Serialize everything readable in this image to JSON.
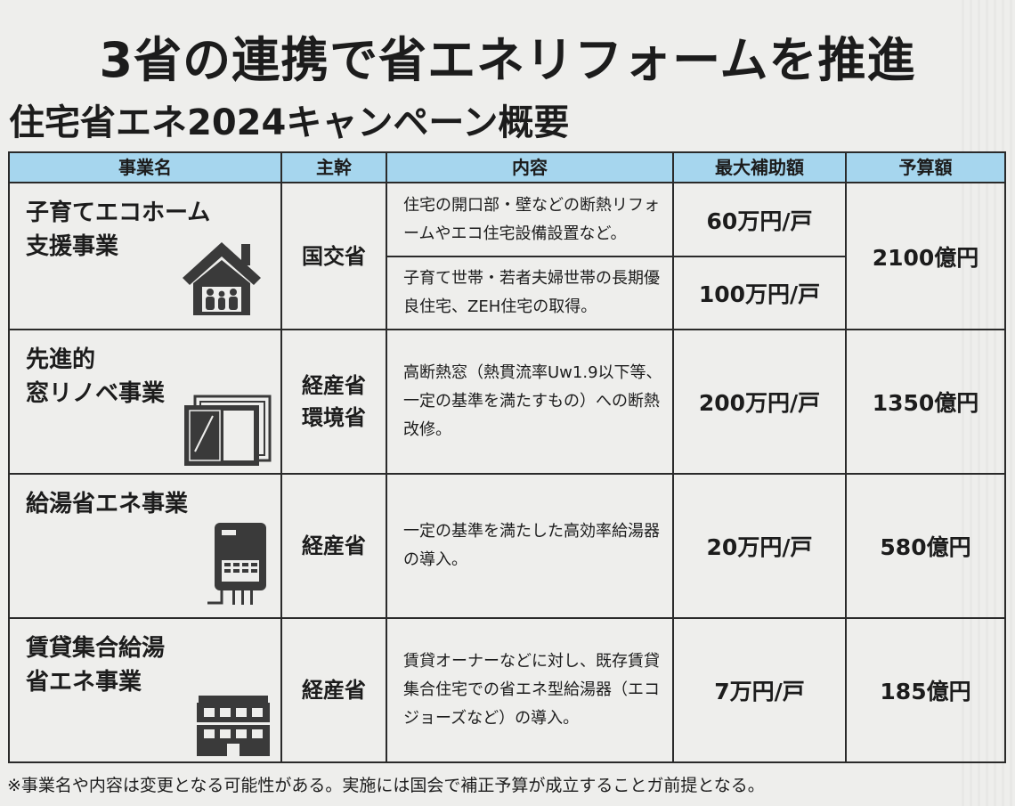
{
  "title": "3省の連携で省エネリフォームを推進",
  "subtitle": "住宅省エネ2024キャンペーン概要",
  "table": {
    "headers": [
      "事業名",
      "主幹",
      "内容",
      "最大補助額",
      "予算額"
    ],
    "rows": [
      {
        "name_line1": "子育てエコホーム",
        "name_line2": "支援事業",
        "icon": "family-house-icon",
        "org": "国交省",
        "items": [
          {
            "content": "住宅の開口部・壁などの断熱リフォームやエコ住宅設備設置など。",
            "max": "60万円/戸"
          },
          {
            "content": "子育て世帯・若者夫婦世帯の長期優良住宅、ZEH住宅の取得。",
            "max": "100万円/戸"
          }
        ],
        "budget": "2100億円"
      },
      {
        "name_line1": "先進的",
        "name_line2": "窓リノベ事業",
        "icon": "window-icon",
        "org_line1": "経産省",
        "org_line2": "環境省",
        "content": "高断熱窓（熱貫流率Uw1.9以下等、一定の基準を満たすもの）への断熱改修。",
        "max": "200万円/戸",
        "budget": "1350億円"
      },
      {
        "name_line1": "給湯省エネ事業",
        "icon": "water-heater-icon",
        "org": "経産省",
        "content": "一定の基準を満たした高効率給湯器の導入。",
        "max": "20万円/戸",
        "budget": "580億円"
      },
      {
        "name_line1": "賃貸集合給湯",
        "name_line2": "省エネ事業",
        "icon": "apartment-building-icon",
        "org": "経産省",
        "content": "賃貸オーナーなどに対し、既存賃貸集合住宅での省エネ型給湯器（エコジョーズなど）の導入。",
        "max": "7万円/戸",
        "budget": "185億円"
      }
    ]
  },
  "note": "※事業名や内容は変更となる可能性がある。実施には国会で補正予算が成立することガ前提となる。",
  "colors": {
    "header_bg": "#a6d6ee",
    "icon": "#3a3a3a"
  }
}
